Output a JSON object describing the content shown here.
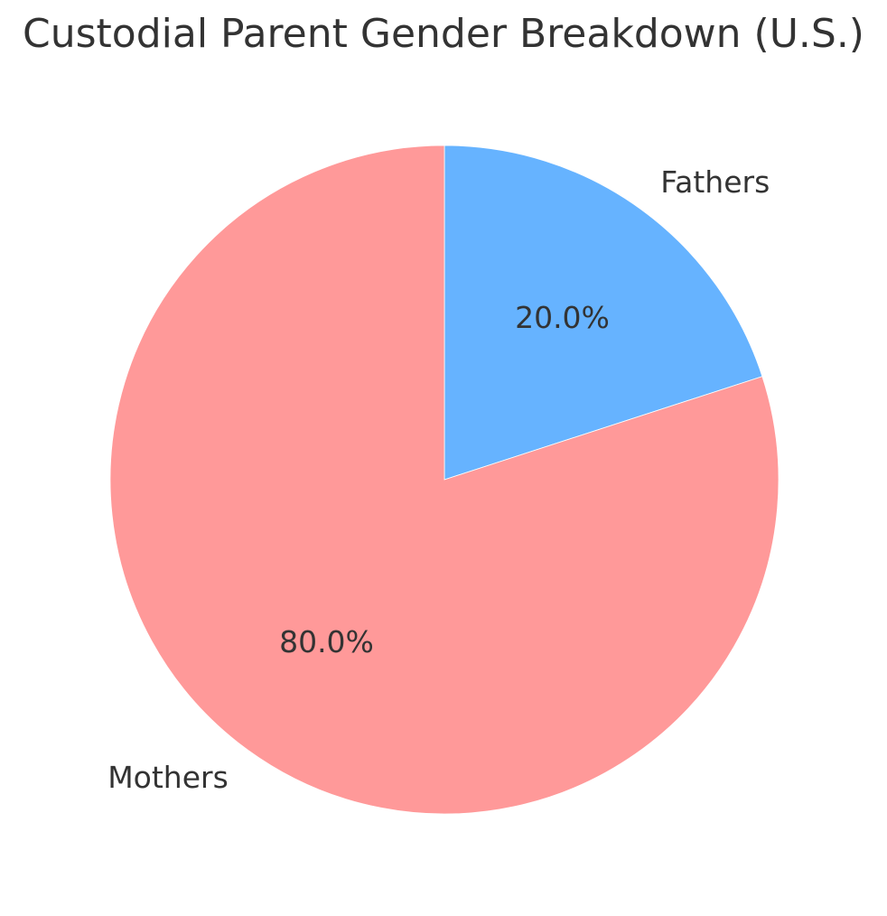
{
  "title": "Custodial Parent Gender Breakdown (U.S.)",
  "colors": {
    "background": "#ffffff",
    "text": "#333333",
    "fathers_slice": "#66B3FF",
    "mothers_slice": "#FF9999"
  },
  "chart_data": {
    "type": "pie",
    "title": "Custodial Parent Gender Breakdown (U.S.)",
    "labels": [
      "Fathers",
      "Mothers"
    ],
    "values": [
      20.0,
      80.0
    ],
    "pct_labels": [
      "20.0%",
      "80.0%"
    ],
    "colors": [
      "#66B3FF",
      "#FF9999"
    ],
    "start_at_top": true,
    "clockwise": true,
    "label_distance_frac": 1.1,
    "pct_distance_frac": 0.6,
    "grid": "off",
    "legend": "none"
  }
}
